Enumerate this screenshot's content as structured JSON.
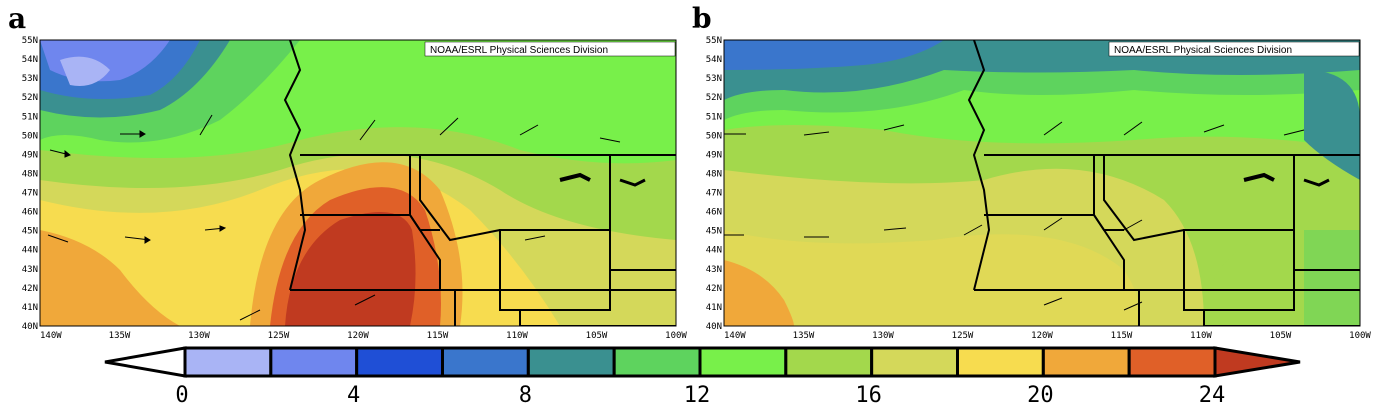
{
  "panels": [
    {
      "letter": "a",
      "credit": "NOAA/ESRL Physical Sciences Division",
      "lat_labels": [
        "55N",
        "54N",
        "53N",
        "52N",
        "51N",
        "50N",
        "49N",
        "48N",
        "47N",
        "46N",
        "45N",
        "44N",
        "43N",
        "42N",
        "41N",
        "40N"
      ],
      "lon_labels": [
        "140W",
        "135W",
        "130W",
        "125W",
        "120W",
        "115W",
        "110W",
        "105W",
        "100W"
      ]
    },
    {
      "letter": "b",
      "credit": "NOAA/ESRL Physical Sciences Division",
      "lat_labels": [
        "55N",
        "54N",
        "53N",
        "52N",
        "51N",
        "50N",
        "49N",
        "48N",
        "47N",
        "46N",
        "45N",
        "44N",
        "43N",
        "42N",
        "41N",
        "40N"
      ],
      "lon_labels": [
        "140W",
        "135W",
        "130W",
        "125W",
        "120W",
        "115W",
        "110W",
        "105W",
        "100W"
      ]
    }
  ],
  "colorbar": {
    "labels": [
      "0",
      "4",
      "8",
      "12",
      "16",
      "20",
      "24"
    ],
    "colors": [
      "#ffffff",
      "#a9b4f5",
      "#6f86ee",
      "#1f4fd6",
      "#3a76cc",
      "#3a9090",
      "#5ed35e",
      "#78f04a",
      "#a3d84c",
      "#d4d85a",
      "#f7dc4f",
      "#f0a83a",
      "#e06028",
      "#c03a20"
    ]
  },
  "colors": {
    "c0": "#a9b4f5",
    "c1": "#6f86ee",
    "c2": "#1f4fd6",
    "c3": "#3a76cc",
    "c4": "#3a9090",
    "c5": "#5ed35e",
    "c6": "#78f04a",
    "c7": "#a3d84c",
    "c8": "#d4d85a",
    "c9": "#f7dc4f",
    "c10": "#f0a83a",
    "c11": "#e06028",
    "c12": "#c03a20"
  }
}
